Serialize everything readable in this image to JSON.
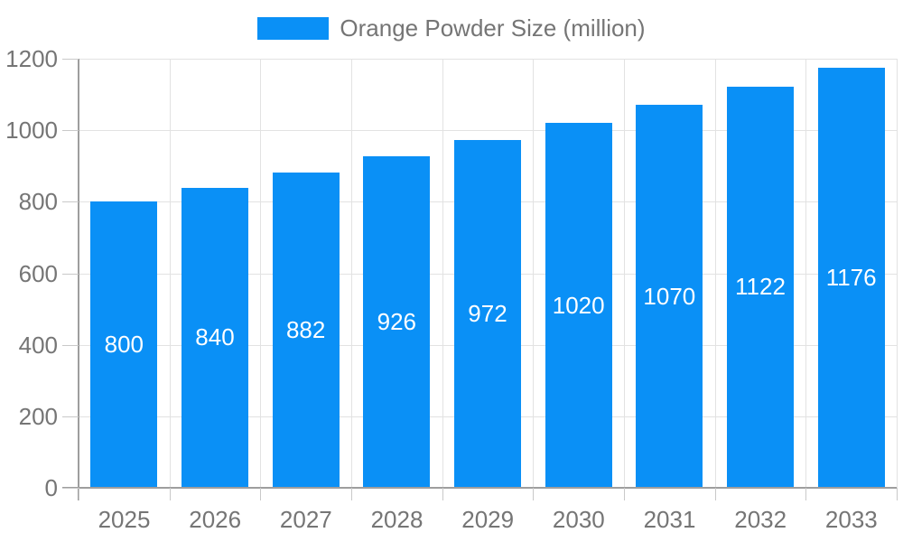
{
  "legend": {
    "label": "Orange Powder Size (million)"
  },
  "colors": {
    "bar": "#0A90F6",
    "grid": "#E2E2E2",
    "axis": "#9E9E9E",
    "tick": "#C9C9C9",
    "text": "#757575",
    "bar_label": "#FFFFFF"
  },
  "chart_data": {
    "type": "bar",
    "title": "",
    "xlabel": "",
    "ylabel": "",
    "categories": [
      "2025",
      "2026",
      "2027",
      "2028",
      "2029",
      "2030",
      "2031",
      "2032",
      "2033"
    ],
    "series": [
      {
        "name": "Orange Powder Size (million)",
        "values": [
          800,
          840,
          882,
          926,
          972,
          1020,
          1070,
          1122,
          1176
        ]
      }
    ],
    "value_labels": [
      "800",
      "840",
      "882",
      "926",
      "972",
      "1020",
      "1070",
      "1122",
      "1176"
    ],
    "value_label_position": "inside-center",
    "ylim": [
      0,
      1200
    ],
    "yticks": [
      0,
      200,
      400,
      600,
      800,
      1000,
      1200
    ],
    "grid": true,
    "legend_position": "top-center"
  }
}
